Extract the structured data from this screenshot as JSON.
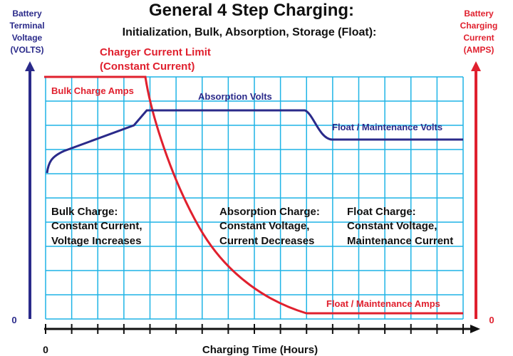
{
  "title": "General 4 Step Charging:",
  "subtitle": "Initialization, Bulk, Absorption, Storage (Float):",
  "left_axis": {
    "label": [
      "Battery",
      "Terminal",
      "Voltage",
      "(VOLTS)"
    ],
    "zero": "0"
  },
  "right_axis": {
    "label": [
      "Battery",
      "Charging",
      "Current",
      "(AMPS)"
    ],
    "zero": "0"
  },
  "x_axis": {
    "label": "Charging Time (Hours)",
    "zero": "0"
  },
  "annotations": {
    "current_limit": [
      "Charger Current Limit",
      "(Constant Current)"
    ],
    "bulk_amps": "Bulk Charge Amps",
    "absorption_volts": "Absorption Volts",
    "float_volts": "Float / Maintenance Volts",
    "float_amps": "Float / Maintenance Amps"
  },
  "phases": [
    {
      "lines": [
        "Bulk Charge:",
        "Constant Current,",
        "Voltage Increases"
      ]
    },
    {
      "lines": [
        "Absorption Charge:",
        "Constant Voltage,",
        "Current Decreases"
      ]
    },
    {
      "lines": [
        "Float Charge:",
        "Constant Voltage,",
        "Maintenance Current"
      ]
    }
  ]
}
